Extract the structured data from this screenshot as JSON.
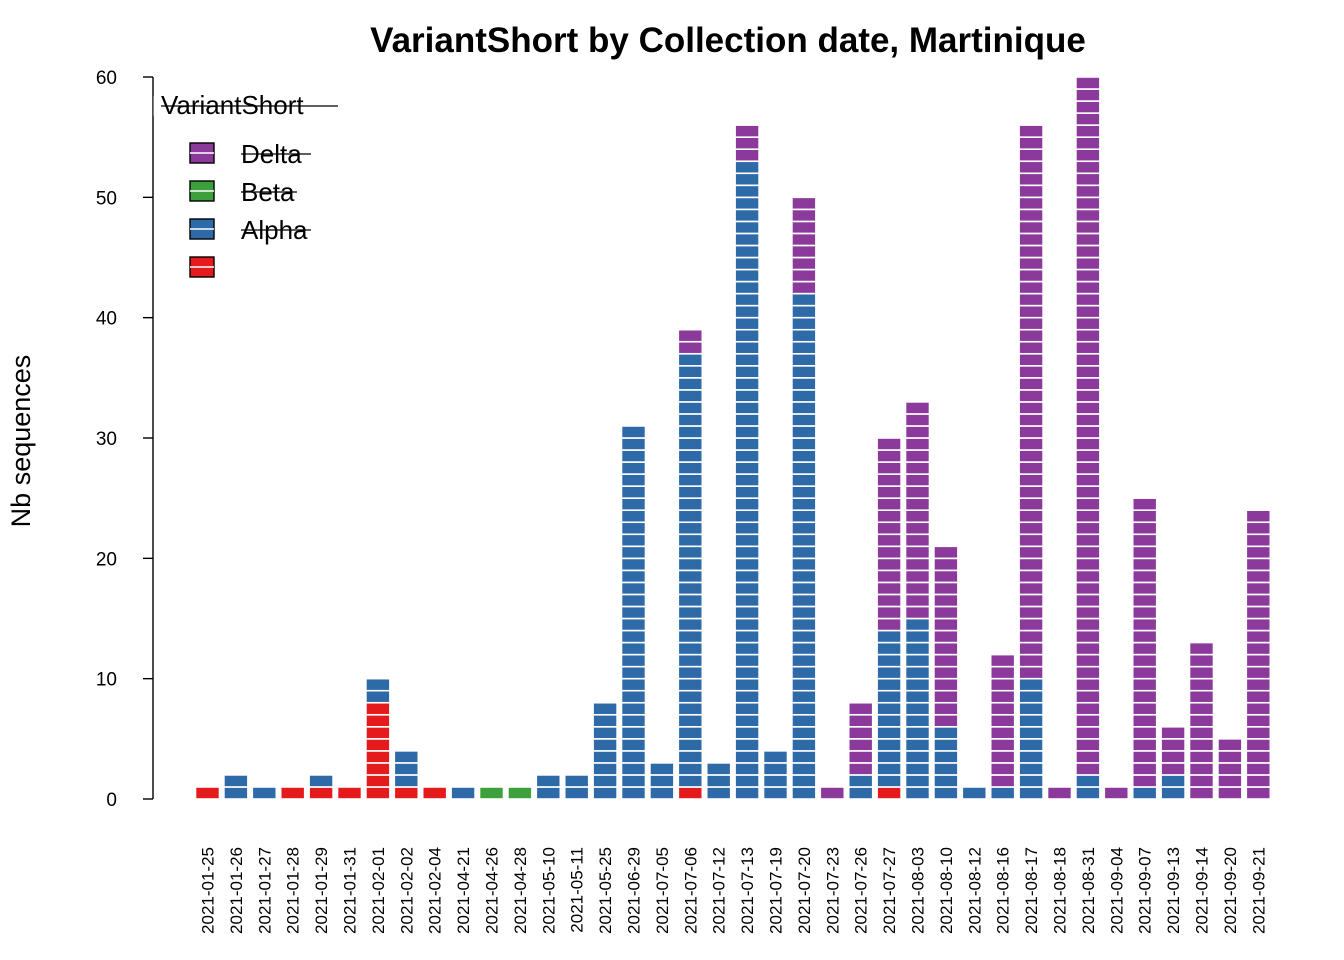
{
  "chart_data": {
    "type": "bar",
    "stacked": true,
    "title": "VariantShort by Collection date, Martinique",
    "xlabel": "",
    "ylabel": "Nb sequences",
    "ylim": [
      0,
      60
    ],
    "yticks": [
      0,
      10,
      20,
      30,
      40,
      50,
      60
    ],
    "grid": false,
    "legend_position": "top-left",
    "legend_title": "VariantShort",
    "categories": [
      "2021-01-25",
      "2021-01-26",
      "2021-01-27",
      "2021-01-28",
      "2021-01-29",
      "2021-01-31",
      "2021-02-01",
      "2021-02-02",
      "2021-02-04",
      "2021-04-21",
      "2021-04-26",
      "2021-04-28",
      "2021-05-10",
      "2021-05-11",
      "2021-05-25",
      "2021-06-29",
      "2021-07-05",
      "2021-07-06",
      "2021-07-12",
      "2021-07-13",
      "2021-07-19",
      "2021-07-20",
      "2021-07-23",
      "2021-07-26",
      "2021-07-27",
      "2021-08-03",
      "2021-08-10",
      "2021-08-12",
      "2021-08-16",
      "2021-08-17",
      "2021-08-18",
      "2021-08-31",
      "2021-09-04",
      "2021-09-07",
      "2021-09-13",
      "2021-09-14",
      "2021-09-20",
      "2021-09-21"
    ],
    "series": [
      {
        "name": "",
        "color": "#E41A1C",
        "values": [
          1,
          0,
          0,
          1,
          1,
          1,
          8,
          1,
          1,
          0,
          0,
          0,
          0,
          0,
          0,
          0,
          0,
          1,
          0,
          0,
          0,
          0,
          0,
          0,
          1,
          0,
          0,
          0,
          0,
          0,
          0,
          0,
          0,
          0,
          0,
          0,
          0,
          0
        ]
      },
      {
        "name": "Alpha",
        "color": "#2E69A8",
        "values": [
          0,
          2,
          1,
          0,
          1,
          0,
          2,
          3,
          0,
          1,
          0,
          0,
          2,
          2,
          8,
          31,
          3,
          36,
          3,
          53,
          4,
          42,
          0,
          2,
          13,
          15,
          6,
          1,
          1,
          10,
          0,
          2,
          0,
          1,
          2,
          0,
          0,
          0
        ]
      },
      {
        "name": "Beta",
        "color": "#3DA03D",
        "values": [
          0,
          0,
          0,
          0,
          0,
          0,
          0,
          0,
          0,
          0,
          1,
          1,
          0,
          0,
          0,
          0,
          0,
          0,
          0,
          0,
          0,
          0,
          0,
          0,
          0,
          0,
          0,
          0,
          0,
          0,
          0,
          0,
          0,
          0,
          0,
          0,
          0,
          0
        ]
      },
      {
        "name": "Delta",
        "color": "#8B3A9B",
        "values": [
          0,
          0,
          0,
          0,
          0,
          0,
          0,
          0,
          0,
          0,
          0,
          0,
          0,
          0,
          0,
          0,
          0,
          2,
          0,
          3,
          0,
          8,
          1,
          6,
          16,
          18,
          15,
          0,
          11,
          46,
          1,
          58,
          1,
          24,
          4,
          13,
          5,
          24
        ]
      }
    ],
    "legend_order": [
      "Delta",
      "Beta",
      "Alpha",
      ""
    ]
  }
}
